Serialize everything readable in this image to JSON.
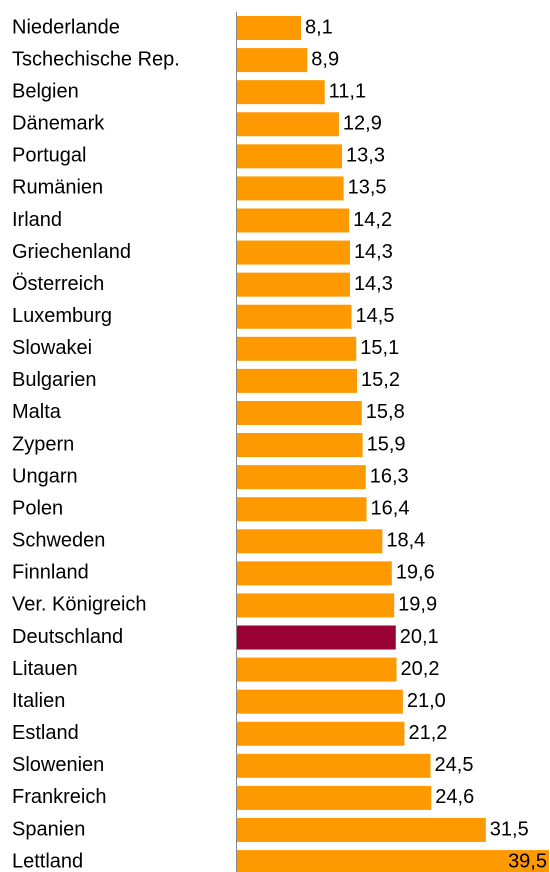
{
  "chart_data": {
    "type": "barh",
    "categories": [
      "Niederlande",
      "Tschechische Rep.",
      "Belgien",
      "Dänemark",
      "Portugal",
      "Rumänien",
      "Irland",
      "Griechenland",
      "Österreich",
      "Luxemburg",
      "Slowakei",
      "Bulgarien",
      "Malta",
      "Zypern",
      "Ungarn",
      "Polen",
      "Schweden",
      "Finnland",
      "Ver. Königreich",
      "Deutschland",
      "Litauen",
      "Italien",
      "Estland",
      "Slowenien",
      "Frankreich",
      "Spanien",
      "Lettland"
    ],
    "values": [
      8.1,
      8.9,
      11.1,
      12.9,
      13.3,
      13.5,
      14.2,
      14.3,
      14.3,
      14.5,
      15.1,
      15.2,
      15.8,
      15.9,
      16.3,
      16.4,
      18.4,
      19.6,
      19.9,
      20.1,
      20.2,
      21.0,
      21.2,
      24.5,
      24.6,
      31.5,
      39.5
    ],
    "value_labels": [
      "8,1",
      "8,9",
      "11,1",
      "12,9",
      "13,3",
      "13,5",
      "14,2",
      "14,3",
      "14,3",
      "14,5",
      "15,1",
      "15,2",
      "15,8",
      "15,9",
      "16,3",
      "16,4",
      "18,4",
      "19,6",
      "19,9",
      "20,1",
      "20,2",
      "21,0",
      "21,2",
      "24,5",
      "24,6",
      "31,5",
      "39,5"
    ],
    "colors": [
      "#ff9900",
      "#ff9900",
      "#ff9900",
      "#ff9900",
      "#ff9900",
      "#ff9900",
      "#ff9900",
      "#ff9900",
      "#ff9900",
      "#ff9900",
      "#ff9900",
      "#ff9900",
      "#ff9900",
      "#ff9900",
      "#ff9900",
      "#ff9900",
      "#ff9900",
      "#ff9900",
      "#ff9900",
      "#990033",
      "#ff9900",
      "#ff9900",
      "#ff9900",
      "#ff9900",
      "#ff9900",
      "#ff9900",
      "#ff9900"
    ]
  }
}
